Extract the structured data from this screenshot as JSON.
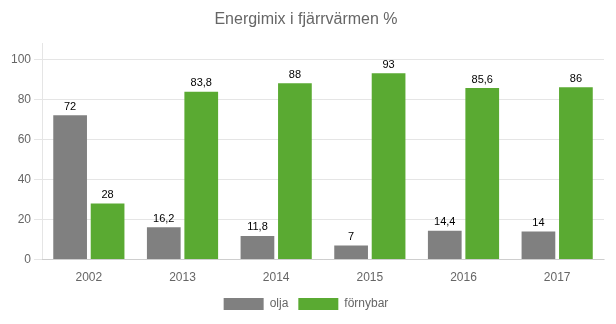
{
  "chart_data": {
    "type": "bar",
    "title": "Energimix i fjärrvärmen %",
    "categories": [
      "2002",
      "2013",
      "2014",
      "2015",
      "2016",
      "2017"
    ],
    "series": [
      {
        "name": "olja",
        "color": "#808080",
        "values": [
          72,
          16.2,
          11.8,
          7,
          14.4,
          14
        ],
        "value_labels": [
          "72",
          "16,2",
          "11,8",
          "7",
          "14,4",
          "14"
        ]
      },
      {
        "name": "förnybar",
        "color": "#5aaa32",
        "values": [
          28,
          83.8,
          88,
          93,
          85.6,
          86
        ],
        "value_labels": [
          "28",
          "83,8",
          "88",
          "93",
          "85,6",
          "86"
        ]
      }
    ],
    "ylim": [
      0,
      108
    ],
    "yticks": [
      0,
      20,
      40,
      60,
      80,
      100
    ],
    "grid": true,
    "legend": "bottom",
    "data_labels": true
  }
}
